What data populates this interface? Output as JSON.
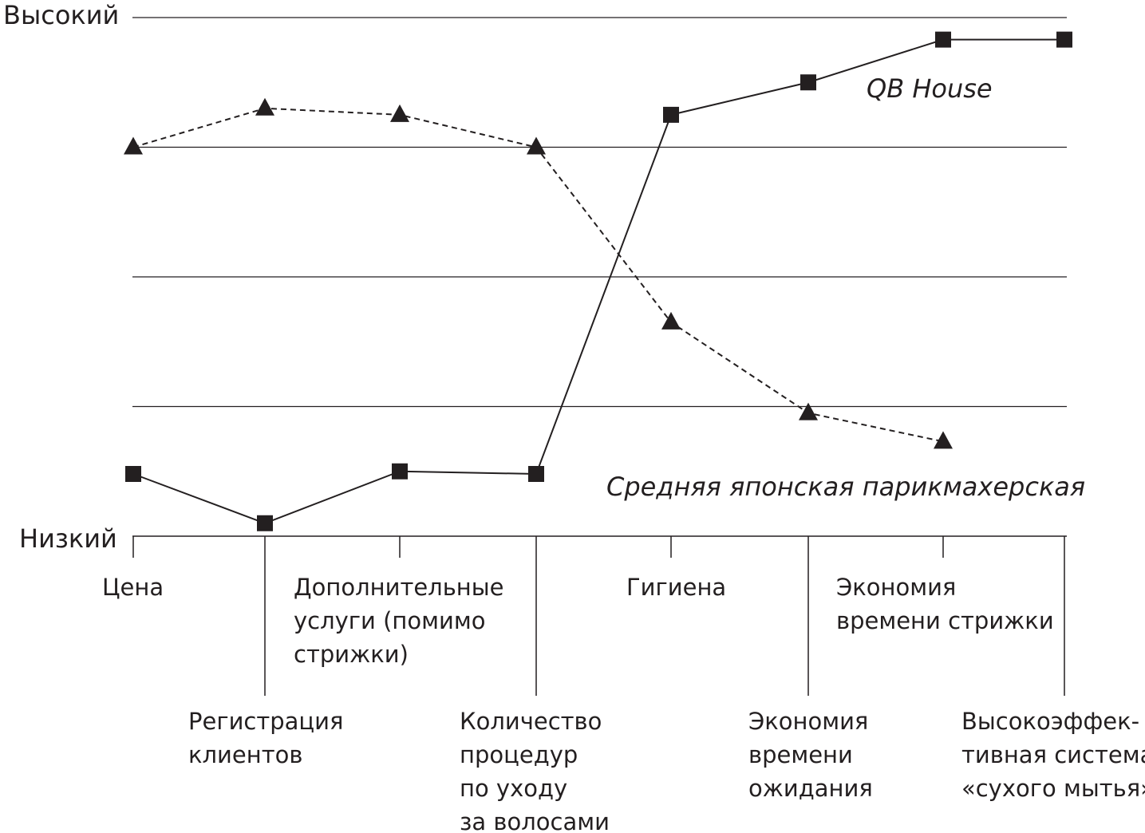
{
  "chart_data": {
    "type": "line",
    "y_high_label": "Высокий",
    "y_low_label": "Низкий",
    "ylim": [
      0,
      4
    ],
    "grid": true,
    "categories": [
      "Цена",
      "Регистрация клиентов",
      "Дополнительные услуги (помимо стрижки)",
      "Количество процедур по уходу за волосами",
      "Гигиена",
      "Экономия времени ожидания",
      "Экономия времени стрижки",
      "Высокоэффективная система «сухого мытья»"
    ],
    "category_lines": [
      [
        "Цена"
      ],
      [
        "Регистрация",
        "клиентов"
      ],
      [
        "Дополнительные",
        "услуги (помимо",
        "стрижки)"
      ],
      [
        "Количество",
        "процедур",
        "по уходу",
        "за волосами"
      ],
      [
        "Гигиена"
      ],
      [
        "Экономия",
        "времени",
        "ожидания"
      ],
      [
        "Экономия",
        "времени стрижки"
      ],
      [
        "Высокоэффек-",
        "тивная система",
        "«сухого мытья»"
      ]
    ],
    "series": [
      {
        "name": "QB House",
        "marker": "square",
        "line": "solid",
        "values": [
          0.48,
          0.1,
          0.5,
          0.48,
          3.25,
          3.5,
          3.83,
          3.83
        ]
      },
      {
        "name": "Средняя японская парикмахерская",
        "marker": "triangle",
        "line": "dashed",
        "values": [
          3.0,
          3.3,
          3.25,
          3.0,
          1.65,
          0.95,
          0.73,
          null
        ]
      }
    ]
  }
}
